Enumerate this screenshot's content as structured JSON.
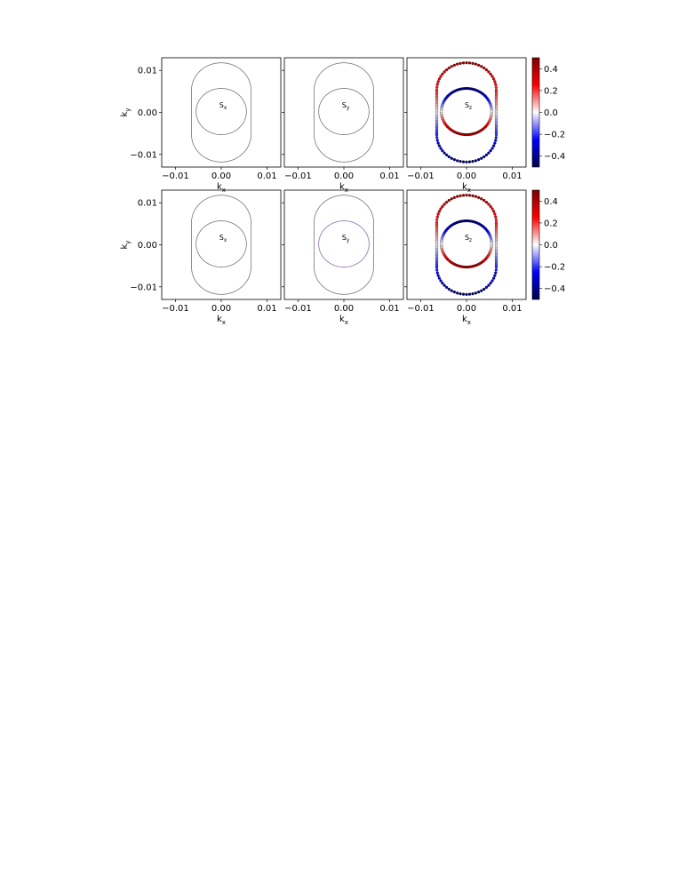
{
  "colors": {
    "fermi_line": "#777777",
    "frame": "#000000",
    "positive": "#a50000",
    "negative": "#1c2fc8",
    "colormap_stops": [
      "#00004c",
      "#0000ff",
      "#ffffff",
      "#ff0000",
      "#7f0000"
    ]
  },
  "chart_data": [
    {
      "type": "scatter",
      "row": 1,
      "col": 1,
      "label": "S",
      "label_sub": "x",
      "mode": "line",
      "xlabel": "k",
      "xlabel_sub": "x",
      "ylabel": "k",
      "ylabel_sub": "y",
      "xlim": [
        -0.013,
        0.013
      ],
      "ylim": [
        -0.013,
        0.013
      ],
      "xticks": [
        "−0.01",
        "0.00",
        "0.01"
      ],
      "yticks": [
        "0.01",
        "0.00",
        "−0.01"
      ],
      "contours": [
        {
          "shape": "circle",
          "center": [
            0,
            0.0002
          ],
          "r": 0.0055
        },
        {
          "shape": "stadium",
          "center": [
            0,
            0
          ],
          "half_width": 0.0065,
          "half_height": 0.0118
        }
      ]
    },
    {
      "type": "scatter",
      "row": 1,
      "col": 2,
      "label": "S",
      "label_sub": "y",
      "mode": "line",
      "xlabel": "k",
      "xlabel_sub": "x",
      "xlim": [
        -0.013,
        0.013
      ],
      "ylim": [
        -0.013,
        0.013
      ],
      "xticks": [
        "−0.01",
        "0.00",
        "0.01"
      ],
      "contours": [
        {
          "shape": "circle",
          "center": [
            0,
            0.0002
          ],
          "r": 0.0055
        },
        {
          "shape": "stadium",
          "center": [
            0,
            0
          ],
          "half_width": 0.0065,
          "half_height": 0.0118
        }
      ]
    },
    {
      "type": "scatter",
      "row": 1,
      "col": 3,
      "label": "S",
      "label_sub": "z",
      "mode": "spin",
      "xlabel": "k",
      "xlabel_sub": "x",
      "xlim": [
        -0.013,
        0.013
      ],
      "ylim": [
        -0.013,
        0.013
      ],
      "xticks": [
        "−0.01",
        "0.00",
        "0.01"
      ],
      "colorbar": {
        "range": [
          -0.5,
          0.5
        ],
        "ticks": [
          "0.4",
          "0.2",
          "0.0",
          "−0.2",
          "−0.4"
        ]
      },
      "contours": [
        {
          "shape": "circle",
          "center": [
            0,
            0.0002
          ],
          "r": 0.0055,
          "spin_upper": -0.45,
          "spin_lower": 0.45
        },
        {
          "shape": "stadium",
          "center": [
            0,
            0
          ],
          "half_width": 0.0065,
          "half_height": 0.0118,
          "spin_upper": 0.45,
          "spin_lower": -0.45
        }
      ]
    },
    {
      "type": "scatter",
      "row": 2,
      "col": 1,
      "label": "S",
      "label_sub": "x",
      "mode": "line",
      "xlabel": "k",
      "xlabel_sub": "x",
      "ylabel": "k",
      "ylabel_sub": "y",
      "xlim": [
        -0.013,
        0.013
      ],
      "ylim": [
        -0.013,
        0.013
      ],
      "xticks": [
        "−0.01",
        "0.00",
        "0.01"
      ],
      "yticks": [
        "0.01",
        "0.00",
        "−0.01"
      ],
      "contours": [
        {
          "shape": "circle",
          "center": [
            0,
            0.0002
          ],
          "r": 0.0055
        },
        {
          "shape": "stadium",
          "center": [
            0,
            0
          ],
          "half_width": 0.0065,
          "half_height": 0.0118
        }
      ]
    },
    {
      "type": "scatter",
      "row": 2,
      "col": 2,
      "label": "S",
      "label_sub": "y",
      "mode": "line",
      "xlabel": "k",
      "xlabel_sub": "x",
      "xlim": [
        -0.013,
        0.013
      ],
      "ylim": [
        -0.013,
        0.013
      ],
      "xticks": [
        "−0.01",
        "0.00",
        "0.01"
      ],
      "tint_inner": true,
      "contours": [
        {
          "shape": "circle",
          "center": [
            0,
            0.0002
          ],
          "r": 0.0055
        },
        {
          "shape": "stadium",
          "center": [
            0,
            0
          ],
          "half_width": 0.0065,
          "half_height": 0.0118
        }
      ]
    },
    {
      "type": "scatter",
      "row": 2,
      "col": 3,
      "label": "S",
      "label_sub": "z",
      "mode": "spin",
      "xlabel": "k",
      "xlabel_sub": "x",
      "xlim": [
        -0.013,
        0.013
      ],
      "ylim": [
        -0.013,
        0.013
      ],
      "xticks": [
        "−0.01",
        "0.00",
        "0.01"
      ],
      "colorbar": {
        "range": [
          -0.5,
          0.5
        ],
        "ticks": [
          "0.4",
          "0.2",
          "0.0",
          "−0.2",
          "−0.4"
        ]
      },
      "contours": [
        {
          "shape": "circle",
          "center": [
            0,
            0.0002
          ],
          "r": 0.0055,
          "spin_upper": -0.45,
          "spin_lower": 0.45
        },
        {
          "shape": "stadium",
          "center": [
            0,
            0
          ],
          "half_width": 0.0065,
          "half_height": 0.0118,
          "spin_upper": 0.45,
          "spin_lower": -0.45
        }
      ]
    }
  ]
}
